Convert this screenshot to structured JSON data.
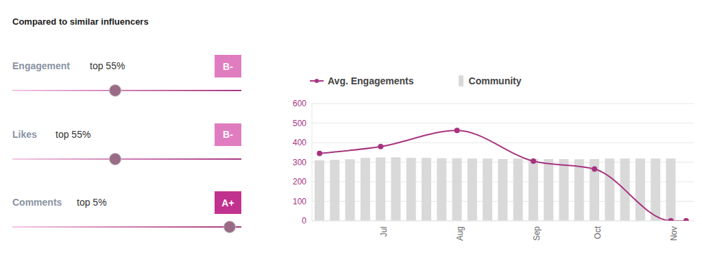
{
  "header": {
    "title": "Compared to similar influencers"
  },
  "metrics": [
    {
      "name": "Engagement",
      "rank": "top 55%",
      "percentile": 55,
      "grade": "B-",
      "color": "#e07cc0"
    },
    {
      "name": "Likes",
      "rank": "top 55%",
      "percentile": 55,
      "grade": "B-",
      "color": "#e07cc0"
    },
    {
      "name": "Comments",
      "rank": "top 5%",
      "percentile": 5,
      "grade": "A+",
      "color": "#c0328e"
    }
  ],
  "chart_data": {
    "type": "bar",
    "categories": [
      null,
      null,
      null,
      null,
      "Jul",
      null,
      null,
      null,
      null,
      "Aug",
      null,
      null,
      null,
      null,
      "Sep",
      null,
      null,
      null,
      "Oct",
      null,
      null,
      null,
      null,
      "Nov",
      null
    ],
    "series": [
      {
        "name": "Avg. Engagements",
        "type": "line",
        "color": "#a8327f",
        "marker": "circle",
        "values": [
          345,
          null,
          null,
          null,
          380,
          null,
          null,
          null,
          null,
          462,
          null,
          null,
          null,
          null,
          305,
          null,
          null,
          null,
          265,
          null,
          null,
          null,
          null,
          0,
          0
        ]
      },
      {
        "name": "Community",
        "type": "bar",
        "color": "#d9d9d9",
        "values": [
          310,
          312,
          315,
          322,
          325,
          325,
          322,
          322,
          320,
          320,
          318,
          318,
          316,
          318,
          317,
          316,
          316,
          315,
          316,
          318,
          318,
          318,
          318,
          318,
          null
        ]
      }
    ],
    "ylim": [
      0,
      600
    ],
    "yticks": [
      0,
      100,
      200,
      300,
      400,
      500,
      600
    ],
    "grid": true,
    "legend": "top"
  }
}
